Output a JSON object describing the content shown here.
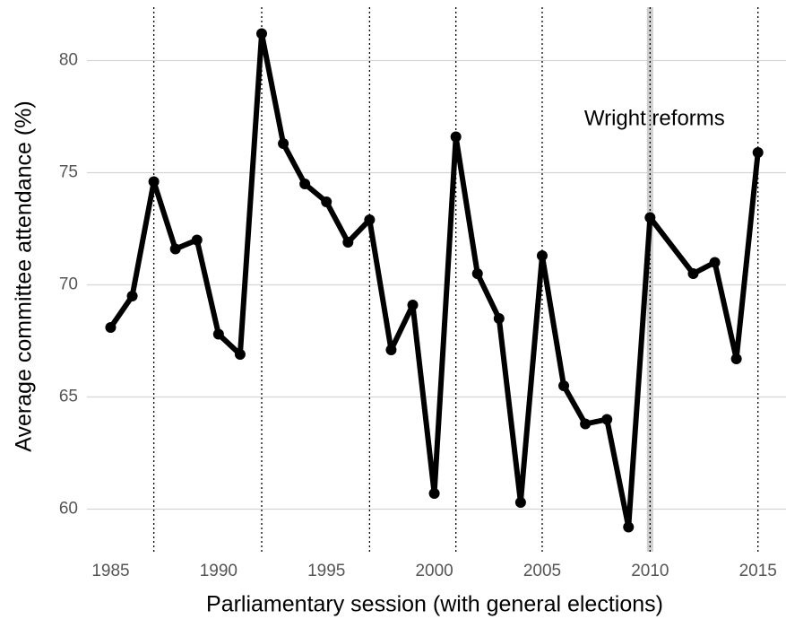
{
  "chart_data": {
    "type": "line",
    "x_label": "Parliamentary session (with general elections)",
    "y_label": "Average committee attendance (%)",
    "x": [
      1985,
      1986,
      1987,
      1988,
      1989,
      1990,
      1991,
      1992,
      1993,
      1994,
      1995,
      1996,
      1997,
      1998,
      1999,
      2000,
      2001,
      2002,
      2003,
      2004,
      2005,
      2006,
      2007,
      2008,
      2009,
      2010,
      2012,
      2013,
      2014,
      2015
    ],
    "series": [
      {
        "color": "#000000",
        "values": [
          68.1,
          69.5,
          74.6,
          71.6,
          72.0,
          67.8,
          66.9,
          81.2,
          76.3,
          74.5,
          73.7,
          71.9,
          72.9,
          67.1,
          69.1,
          60.7,
          76.6,
          70.5,
          68.5,
          60.3,
          71.3,
          65.5,
          63.8,
          64.0,
          59.2,
          73.0,
          70.5,
          71.0,
          66.7,
          75.9
        ]
      }
    ],
    "elections": [
      1987,
      1992,
      1997,
      2001,
      2005,
      2010,
      2015
    ],
    "reform": {
      "x": 2010,
      "label": "Wright  reforms"
    },
    "xlim": [
      1983.9,
      2016.3
    ],
    "ylim": [
      58.1,
      82.7
    ],
    "xticks": [
      1985,
      1990,
      1995,
      2000,
      2005,
      2010,
      2015
    ],
    "yticks": [
      60,
      65,
      70,
      75,
      80
    ],
    "grid": true
  }
}
